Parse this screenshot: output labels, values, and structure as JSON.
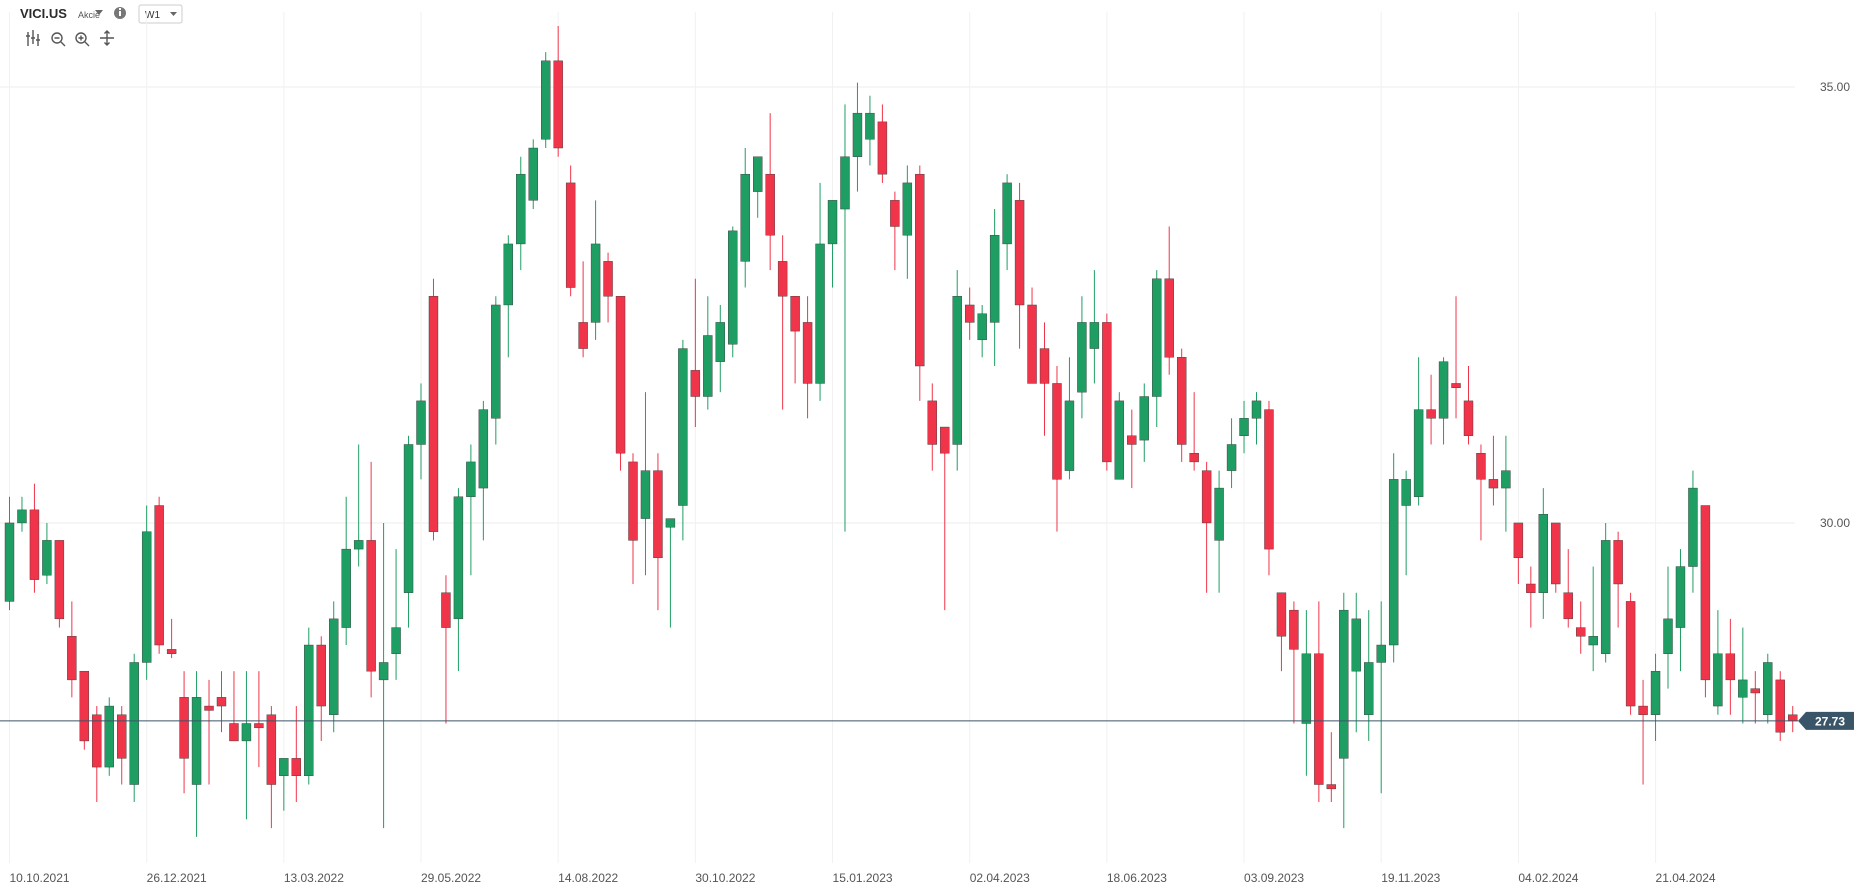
{
  "toolbar": {
    "symbol": "VICI.US",
    "instrument_type": "Akcie",
    "interval": "W1"
  },
  "chart_data": {
    "type": "candlestick",
    "categories": [
      "10.10.2021",
      null,
      null,
      null,
      null,
      null,
      null,
      null,
      null,
      null,
      null,
      "26.12.2021",
      null,
      null,
      null,
      null,
      null,
      null,
      null,
      null,
      null,
      null,
      "13.03.2022",
      null,
      null,
      null,
      null,
      null,
      null,
      null,
      null,
      null,
      null,
      "29.05.2022",
      null,
      null,
      null,
      null,
      null,
      null,
      null,
      null,
      null,
      null,
      "14.08.2022",
      null,
      null,
      null,
      null,
      null,
      null,
      null,
      null,
      null,
      null,
      "30.10.2022",
      null,
      null,
      null,
      null,
      null,
      null,
      null,
      null,
      null,
      null,
      "15.01.2023",
      null,
      null,
      null,
      null,
      null,
      null,
      null,
      null,
      null,
      null,
      "02.04.2023",
      null,
      null,
      null,
      null,
      null,
      null,
      null,
      null,
      null,
      null,
      "18.06.2023",
      null,
      null,
      null,
      null,
      null,
      null,
      null,
      null,
      null,
      null,
      "03.09.2023",
      null,
      null,
      null,
      null,
      null,
      null,
      null,
      null,
      null,
      null,
      "19.11.2023",
      null,
      null,
      null,
      null,
      null,
      null,
      null,
      null,
      null,
      null,
      "04.02.2024",
      null,
      null,
      null,
      null,
      null,
      null,
      null,
      null,
      null,
      null,
      "21.04.2024",
      null,
      null,
      null,
      null,
      null,
      null,
      null,
      null,
      null,
      null,
      null
    ],
    "open": [
      29.1,
      30.0,
      30.15,
      29.4,
      29.8,
      28.7,
      28.3,
      27.8,
      27.2,
      27.8,
      27.0,
      28.4,
      30.2,
      28.55,
      28.0,
      27.0,
      27.9,
      28.0,
      27.7,
      27.5,
      27.7,
      27.8,
      27.1,
      27.3,
      27.1,
      28.6,
      27.8,
      28.8,
      29.7,
      29.8,
      28.2,
      28.5,
      29.2,
      30.9,
      32.6,
      29.2,
      28.9,
      30.3,
      30.4,
      31.2,
      32.5,
      33.2,
      33.7,
      34.4,
      35.3,
      33.9,
      32.3,
      32.3,
      33.0,
      32.6,
      30.7,
      30.05,
      30.6,
      29.95,
      30.2,
      31.75,
      31.45,
      31.85,
      32.05,
      33.0,
      33.8,
      34.0,
      33.0,
      32.6,
      32.3,
      31.6,
      33.2,
      33.6,
      34.2,
      34.4,
      34.6,
      33.7,
      33.3,
      34.0,
      31.4,
      31.1,
      30.9,
      32.5,
      32.1,
      32.3,
      33.2,
      33.7,
      32.5,
      32.0,
      31.6,
      30.6,
      31.5,
      32.0,
      32.3,
      30.5,
      31.0,
      30.95,
      31.45,
      32.8,
      31.9,
      30.8,
      30.6,
      29.8,
      30.6,
      31.0,
      31.2,
      31.3,
      29.2,
      29.0,
      27.7,
      28.5,
      27.0,
      27.3,
      28.3,
      27.8,
      28.4,
      28.6,
      30.2,
      30.3,
      31.3,
      31.2,
      31.6,
      31.4,
      30.8,
      30.5,
      30.4,
      30.0,
      29.3,
      29.2,
      30.0,
      29.2,
      28.8,
      28.6,
      28.5,
      29.8,
      29.1,
      27.9,
      27.8,
      28.5,
      28.8,
      29.5,
      30.2,
      27.9,
      28.5,
      28.0,
      28.1,
      27.8,
      28.2,
      27.8
    ],
    "high": [
      30.3,
      30.3,
      30.45,
      30.0,
      29.8,
      29.1,
      28.3,
      27.9,
      28.0,
      27.9,
      28.5,
      30.2,
      30.3,
      28.9,
      28.3,
      28.3,
      28.2,
      28.3,
      28.3,
      28.3,
      28.3,
      27.9,
      27.3,
      27.9,
      28.8,
      28.7,
      29.1,
      30.3,
      30.9,
      30.7,
      30.0,
      29.7,
      31.0,
      31.6,
      32.8,
      29.4,
      30.4,
      30.9,
      31.4,
      32.6,
      33.3,
      34.2,
      34.4,
      35.4,
      35.7,
      34.1,
      33.0,
      33.7,
      33.1,
      32.6,
      30.8,
      31.5,
      30.8,
      30.05,
      32.1,
      32.8,
      32.6,
      32.5,
      33.4,
      34.3,
      34.2,
      34.7,
      33.3,
      32.6,
      32.6,
      33.9,
      33.7,
      34.8,
      35.05,
      34.9,
      34.8,
      33.8,
      34.1,
      34.1,
      31.6,
      31.1,
      32.9,
      32.7,
      32.5,
      33.6,
      34.0,
      33.9,
      32.7,
      32.3,
      31.8,
      31.9,
      32.6,
      32.9,
      32.4,
      31.5,
      31.3,
      31.6,
      32.9,
      33.4,
      32.0,
      31.5,
      30.7,
      30.6,
      31.2,
      31.4,
      31.5,
      31.4,
      29.2,
      29.1,
      29.0,
      29.1,
      27.6,
      29.2,
      29.2,
      29.0,
      29.1,
      30.8,
      30.6,
      31.9,
      31.7,
      31.9,
      32.6,
      31.8,
      30.9,
      31.0,
      31.0,
      30.0,
      29.5,
      30.4,
      30.0,
      29.7,
      29.1,
      29.5,
      30.0,
      29.9,
      29.2,
      28.2,
      28.5,
      29.5,
      29.7,
      30.6,
      30.2,
      29.0,
      28.9,
      28.8,
      28.3,
      28.5,
      28.3,
      27.9
    ],
    "low": [
      29.0,
      29.9,
      29.2,
      29.3,
      28.8,
      28.0,
      27.4,
      26.8,
      27.1,
      27.0,
      26.8,
      28.2,
      28.5,
      28.45,
      26.9,
      26.4,
      27.0,
      27.6,
      27.5,
      26.6,
      27.2,
      26.5,
      26.7,
      26.8,
      27.0,
      27.5,
      27.6,
      28.6,
      29.5,
      28.0,
      26.5,
      28.2,
      28.8,
      30.5,
      29.8,
      27.7,
      28.3,
      29.4,
      29.8,
      30.9,
      31.9,
      32.9,
      33.6,
      34.3,
      34.2,
      32.6,
      31.9,
      32.1,
      32.3,
      30.6,
      29.3,
      29.4,
      29.0,
      28.8,
      29.8,
      31.1,
      31.3,
      31.5,
      31.9,
      32.7,
      33.5,
      32.9,
      31.3,
      31.6,
      31.2,
      31.4,
      32.7,
      29.9,
      33.8,
      34.1,
      33.9,
      32.9,
      32.8,
      31.4,
      30.6,
      29.0,
      30.6,
      32.1,
      31.9,
      31.8,
      32.9,
      32.0,
      31.6,
      31.0,
      29.9,
      30.5,
      31.2,
      31.6,
      30.6,
      30.5,
      30.4,
      30.7,
      31.1,
      31.7,
      30.7,
      30.6,
      29.2,
      29.2,
      30.4,
      30.8,
      30.9,
      29.4,
      28.3,
      27.7,
      27.1,
      26.8,
      26.8,
      26.5,
      27.6,
      27.5,
      26.9,
      28.4,
      29.4,
      30.2,
      30.9,
      30.9,
      31.2,
      30.9,
      29.8,
      30.2,
      29.9,
      29.3,
      28.8,
      28.9,
      29.2,
      28.8,
      28.5,
      28.3,
      28.4,
      28.8,
      27.8,
      27.0,
      27.5,
      28.1,
      28.3,
      29.2,
      28.0,
      27.8,
      27.8,
      27.7,
      27.7,
      27.7,
      27.5,
      27.6
    ],
    "close": [
      30.0,
      30.15,
      29.35,
      29.8,
      28.9,
      28.2,
      27.5,
      27.2,
      27.9,
      27.3,
      28.4,
      29.9,
      28.6,
      28.5,
      27.3,
      28.0,
      27.85,
      27.9,
      27.5,
      27.7,
      27.65,
      27.0,
      27.3,
      27.1,
      28.6,
      27.9,
      28.9,
      29.7,
      29.8,
      28.3,
      28.4,
      28.8,
      30.9,
      31.4,
      29.9,
      28.8,
      30.3,
      30.7,
      31.3,
      32.5,
      33.2,
      34.0,
      34.3,
      35.3,
      34.3,
      32.7,
      32.0,
      33.2,
      32.6,
      30.8,
      29.8,
      30.6,
      29.6,
      30.05,
      32.0,
      31.45,
      32.15,
      32.3,
      33.35,
      34.0,
      34.2,
      33.3,
      32.6,
      32.2,
      31.6,
      33.2,
      33.7,
      34.2,
      34.7,
      34.7,
      34.0,
      33.4,
      33.9,
      31.8,
      30.9,
      30.8,
      32.6,
      32.3,
      32.4,
      33.3,
      33.9,
      32.5,
      31.6,
      31.6,
      30.5,
      31.4,
      32.3,
      32.3,
      30.7,
      31.4,
      30.9,
      31.45,
      32.8,
      31.9,
      30.9,
      30.7,
      30.0,
      30.4,
      30.9,
      31.2,
      31.4,
      29.7,
      28.7,
      28.55,
      28.5,
      27.0,
      26.95,
      29.0,
      28.9,
      28.4,
      28.6,
      30.5,
      30.5,
      31.3,
      31.2,
      31.85,
      31.55,
      31.0,
      30.5,
      30.4,
      30.6,
      29.6,
      29.2,
      30.1,
      29.3,
      28.9,
      28.7,
      28.7,
      29.8,
      29.3,
      27.9,
      27.8,
      28.3,
      28.9,
      29.5,
      30.4,
      28.2,
      28.5,
      28.2,
      28.2,
      28.05,
      28.4,
      27.6,
      27.73
    ],
    "up_color": "#1f9e63",
    "down_color": "#f0354a",
    "last_price_color": "#3b5568",
    "ylim": [
      26.1,
      35.86
    ],
    "yticks": [
      {
        "value": 30,
        "label": "30.00"
      },
      {
        "value": 35,
        "label": "35.00"
      }
    ],
    "grid": true
  }
}
